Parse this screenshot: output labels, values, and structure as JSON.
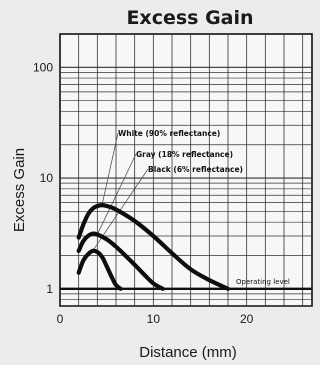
{
  "chart_data": {
    "type": "line",
    "title": "Excess Gain",
    "xlabel": "Distance (mm)",
    "ylabel": "Excess Gain",
    "xlim": [
      0,
      27
    ],
    "ylim": [
      0.7,
      200
    ],
    "y_scale": "log",
    "grid": true,
    "x_ticks": [
      {
        "value": 0,
        "label": "0"
      },
      {
        "value": 10,
        "label": "10"
      },
      {
        "value": 20,
        "label": "20"
      }
    ],
    "y_ticks": [
      {
        "value": 1,
        "label": "1"
      },
      {
        "value": 10,
        "label": "10"
      },
      {
        "value": 100,
        "label": "100"
      }
    ],
    "series": [
      {
        "name": "White (90% reflectance)",
        "points": [
          [
            2,
            2.9
          ],
          [
            2.5,
            3.8
          ],
          [
            3,
            4.7
          ],
          [
            3.5,
            5.3
          ],
          [
            4,
            5.6
          ],
          [
            4.5,
            5.7
          ],
          [
            5,
            5.6
          ],
          [
            6,
            5.2
          ],
          [
            8,
            4.1
          ],
          [
            10,
            3.0
          ],
          [
            12,
            2.1
          ],
          [
            14,
            1.5
          ],
          [
            16,
            1.2
          ],
          [
            18,
            1.0
          ]
        ]
      },
      {
        "name": "Gray (18% reflectance)",
        "points": [
          [
            2,
            2.2
          ],
          [
            2.5,
            2.7
          ],
          [
            3,
            3.0
          ],
          [
            3.5,
            3.15
          ],
          [
            4,
            3.1
          ],
          [
            5,
            2.8
          ],
          [
            6,
            2.4
          ],
          [
            7,
            2.0
          ],
          [
            8,
            1.65
          ],
          [
            9,
            1.35
          ],
          [
            10,
            1.12
          ],
          [
            11,
            1.0
          ]
        ]
      },
      {
        "name": "Black (6% reflectance)",
        "points": [
          [
            2,
            1.4
          ],
          [
            2.5,
            1.8
          ],
          [
            3,
            2.05
          ],
          [
            3.5,
            2.2
          ],
          [
            4,
            2.15
          ],
          [
            4.5,
            1.95
          ],
          [
            5,
            1.6
          ],
          [
            5.5,
            1.3
          ],
          [
            6,
            1.08
          ],
          [
            6.5,
            1.0
          ]
        ]
      }
    ],
    "annotations": [
      {
        "text": "White (90% reflectance)",
        "anchor": [
          4.5,
          5.7
        ]
      },
      {
        "text": "Gray (18% reflectance)",
        "anchor": [
          4,
          3.1
        ]
      },
      {
        "text": "Black (6% reflectance)",
        "anchor": [
          3.5,
          2.2
        ]
      },
      {
        "text": "Operating level",
        "anchor": [
          18,
          1
        ]
      }
    ],
    "operating_level": 1
  }
}
